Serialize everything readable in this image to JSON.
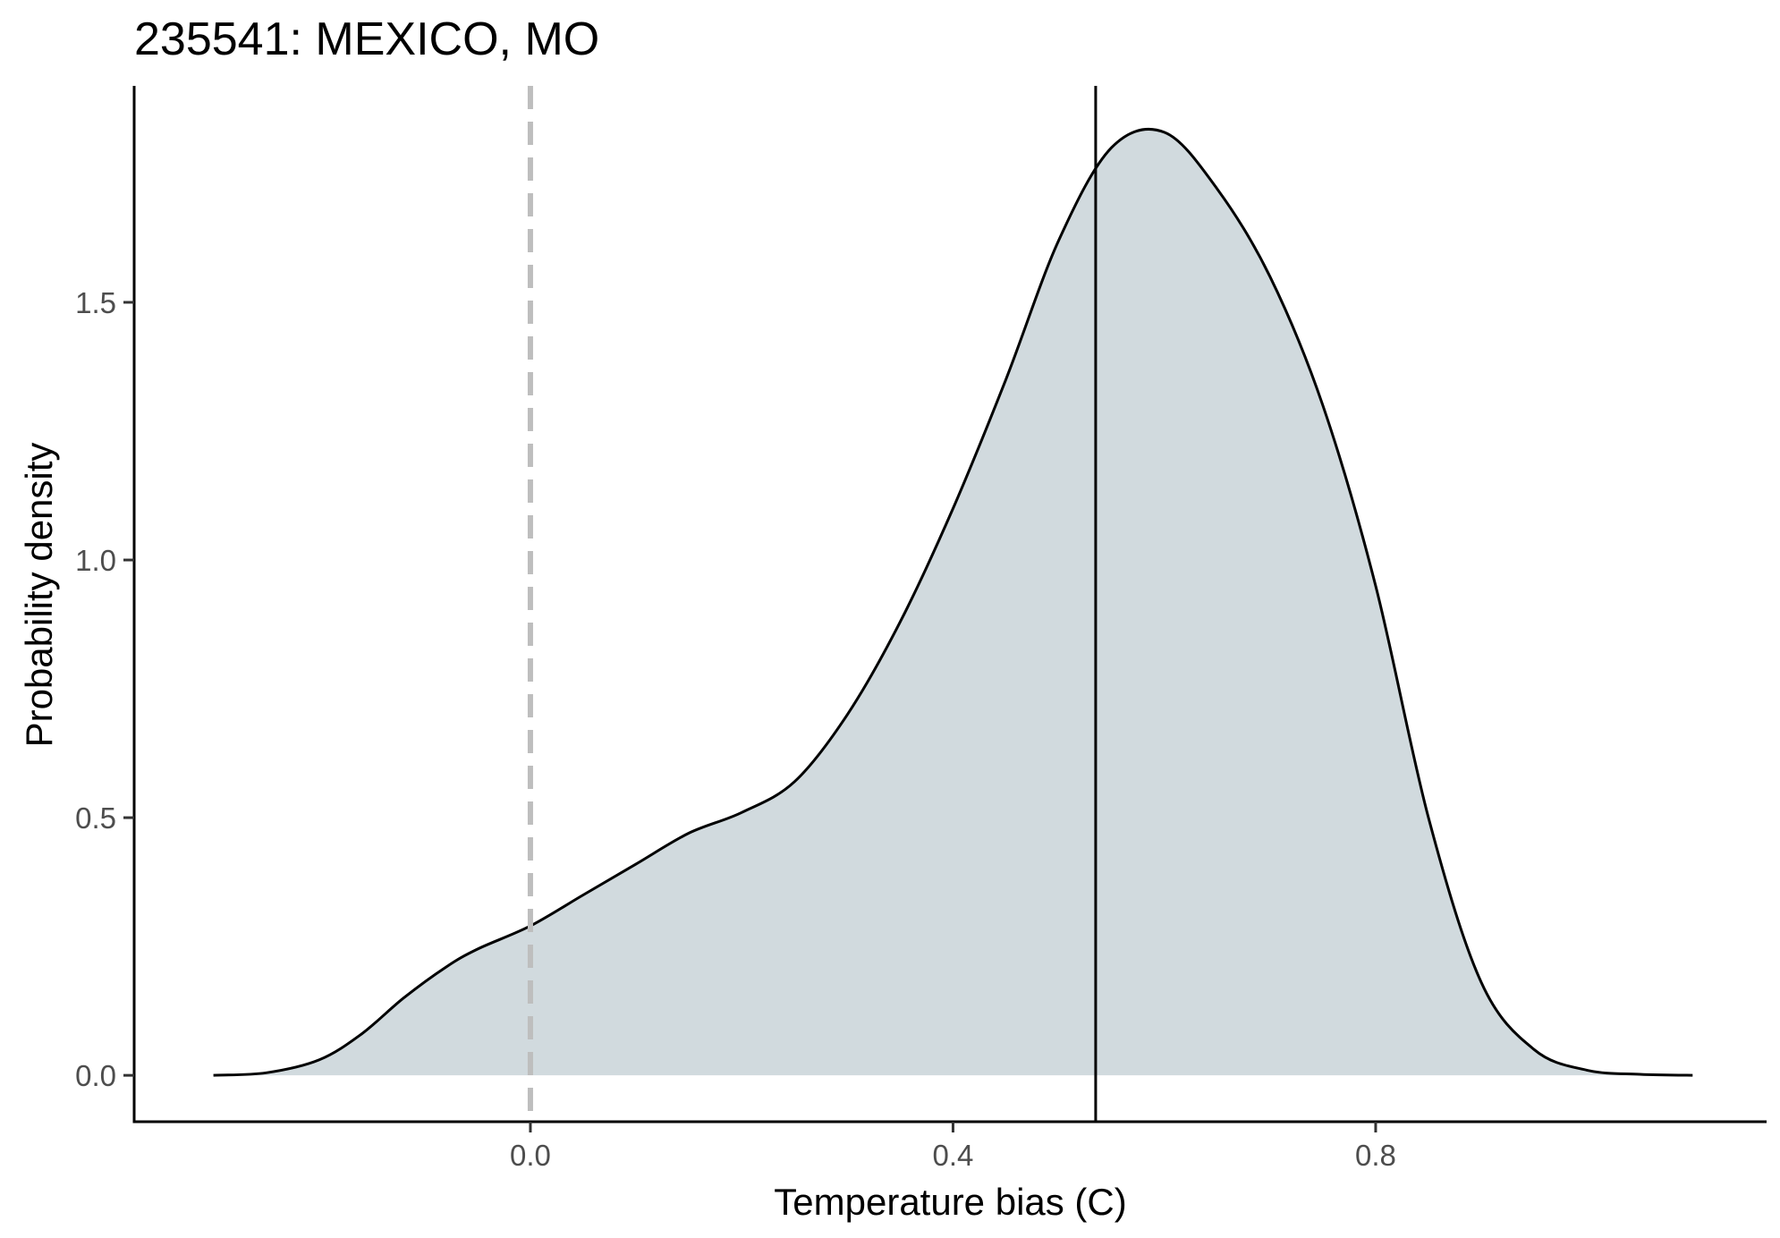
{
  "chart_data": {
    "type": "area",
    "title": "235541: MEXICO, MO",
    "xlabel": "Temperature bias (C)",
    "ylabel": "Probability density",
    "xlim": [
      -0.375,
      1.17
    ],
    "ylim": [
      -0.09,
      1.92
    ],
    "x_ticks": [
      0.0,
      0.4,
      0.8
    ],
    "x_tick_labels": [
      "0.0",
      "0.4",
      "0.8"
    ],
    "y_ticks": [
      0.0,
      0.5,
      1.0,
      1.5
    ],
    "y_tick_labels": [
      "0.0",
      "0.5",
      "1.0",
      "1.5"
    ],
    "grid": false,
    "series": [
      {
        "x": [
          -0.3,
          -0.25,
          -0.2,
          -0.16,
          -0.12,
          -0.08,
          -0.05,
          0.0,
          0.05,
          0.1,
          0.15,
          0.2,
          0.25,
          0.3,
          0.35,
          0.4,
          0.45,
          0.5,
          0.55,
          0.6,
          0.65,
          0.7,
          0.75,
          0.8,
          0.85,
          0.9,
          0.95,
          1.0,
          1.05,
          1.1
        ],
        "y": [
          0.0,
          0.005,
          0.03,
          0.08,
          0.15,
          0.21,
          0.245,
          0.29,
          0.35,
          0.41,
          0.47,
          0.51,
          0.57,
          0.7,
          0.88,
          1.1,
          1.35,
          1.62,
          1.8,
          1.83,
          1.72,
          1.55,
          1.3,
          0.95,
          0.5,
          0.18,
          0.05,
          0.01,
          0.002,
          0.0
        ],
        "fill": "#d1dade",
        "line": "#000000"
      }
    ],
    "reference_lines": [
      {
        "x": 0.0,
        "style": "dashed",
        "color": "#bebebe"
      },
      {
        "x": 0.535,
        "style": "solid",
        "color": "#000000"
      }
    ]
  }
}
